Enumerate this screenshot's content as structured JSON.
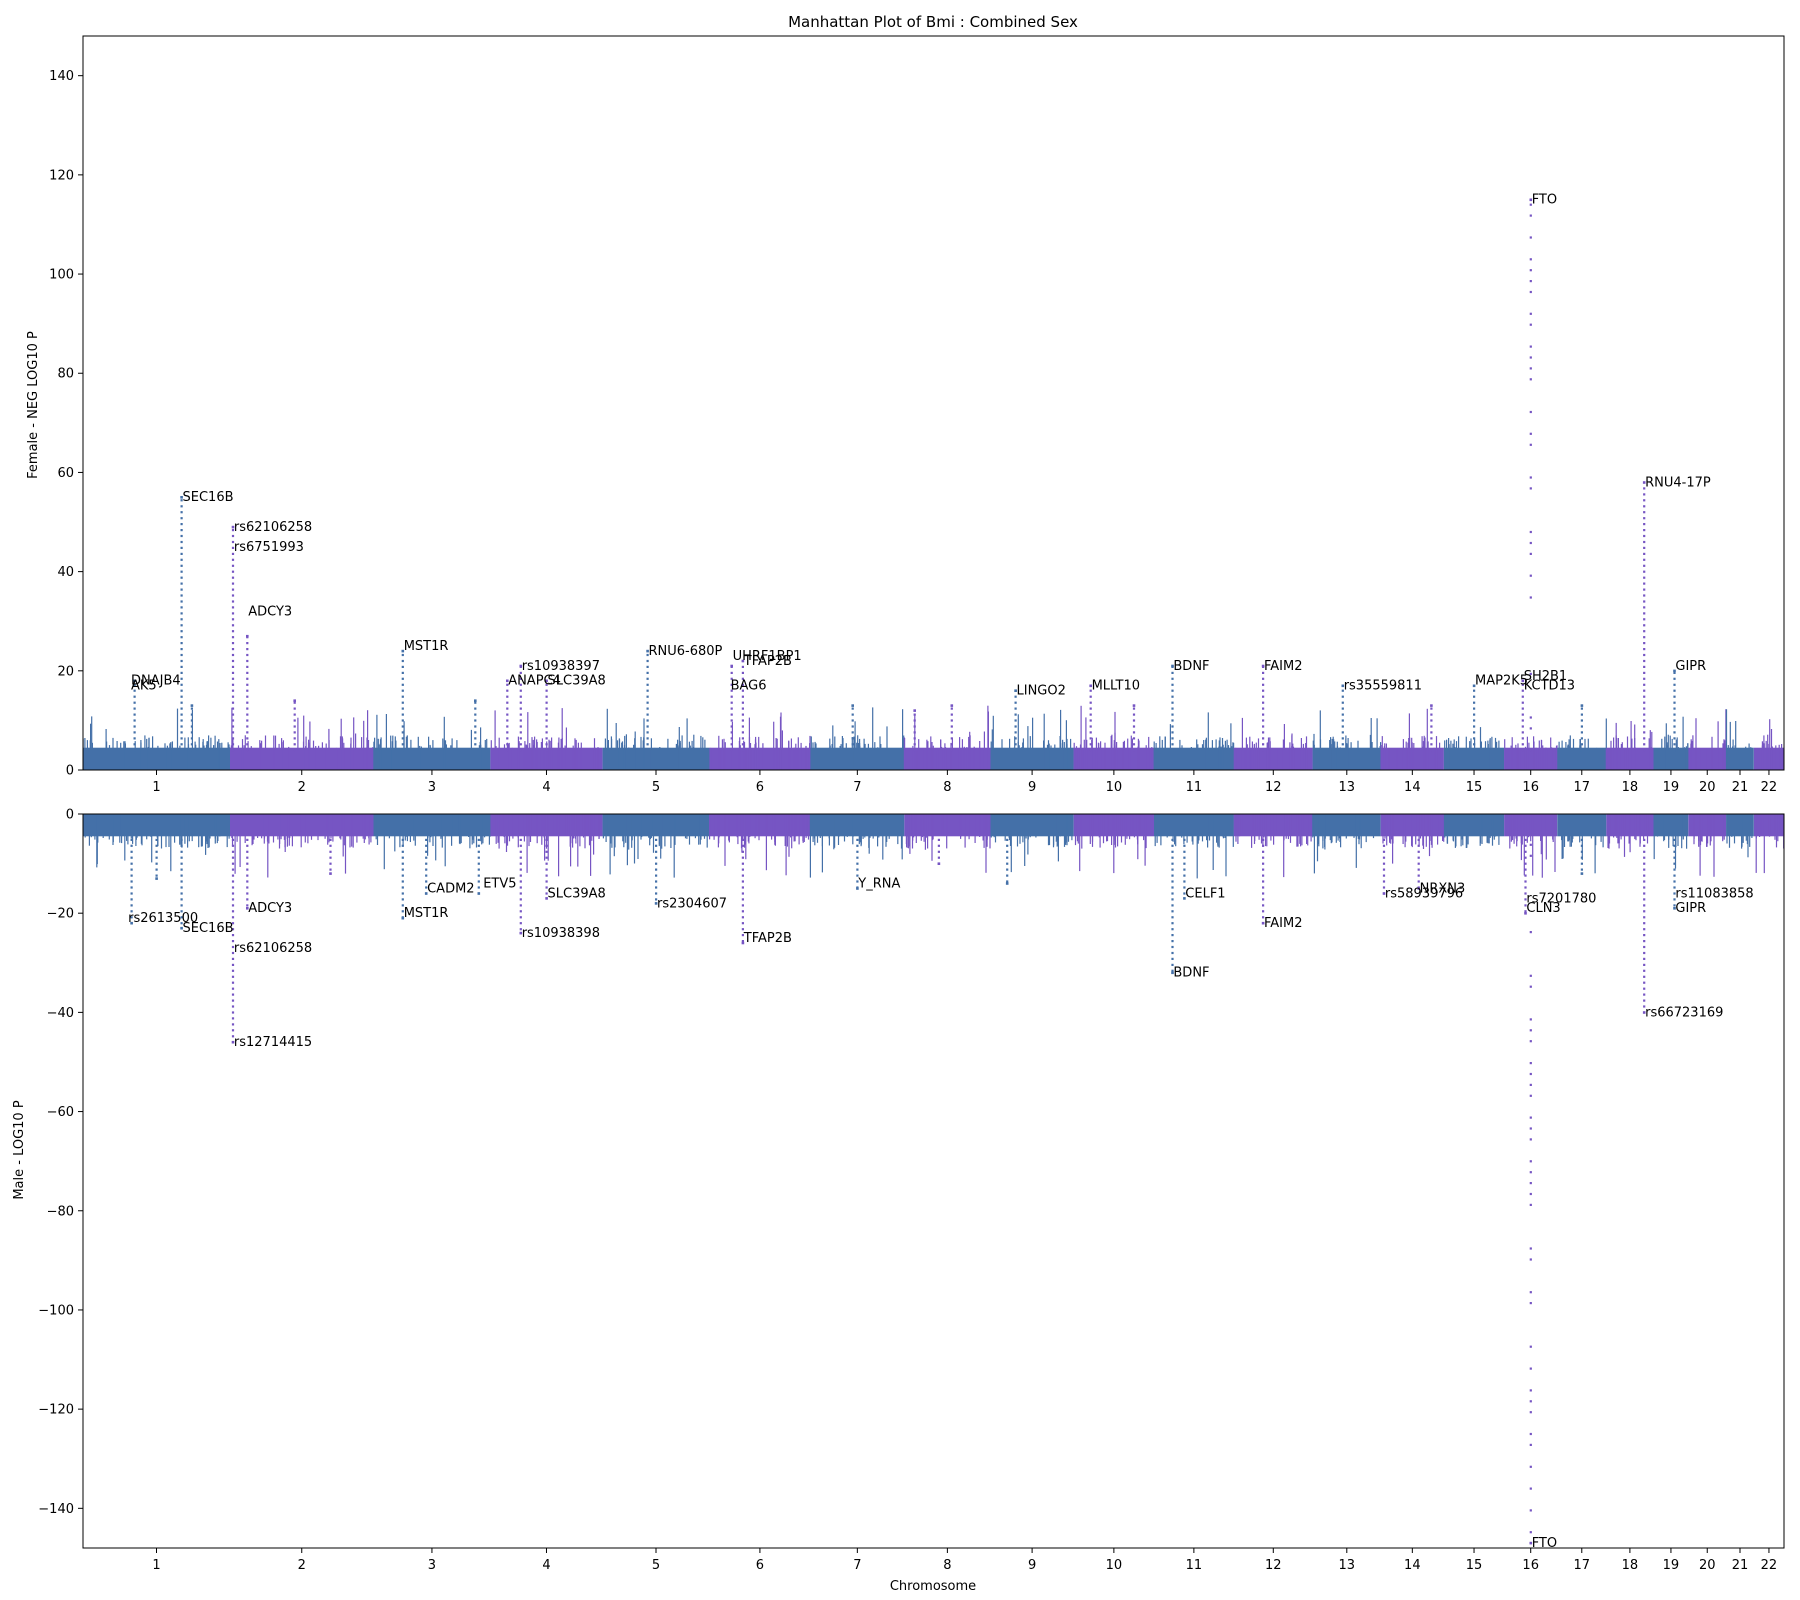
{
  "chart_data": {
    "type": "scatter",
    "title": "Manhattan Plot of Bmi : Combined Sex",
    "xlabel": "Chromosome",
    "chromosomes": [
      "1",
      "2",
      "3",
      "4",
      "5",
      "6",
      "7",
      "8",
      "9",
      "10",
      "11",
      "12",
      "13",
      "14",
      "15",
      "16",
      "17",
      "18",
      "19",
      "20",
      "21",
      "22"
    ],
    "chrom_lengths_mb": [
      249,
      243,
      198,
      190,
      181,
      171,
      159,
      146,
      141,
      136,
      135,
      134,
      115,
      107,
      102,
      90,
      83,
      80,
      59,
      64,
      47,
      51
    ],
    "colors": {
      "odd": "#4470a8",
      "even": "#7655c3"
    },
    "panels": [
      {
        "name": "female",
        "ylabel": "Female - NEG LOG10 P",
        "ylim": [
          0,
          148
        ],
        "yticks": [
          0,
          20,
          40,
          60,
          80,
          100,
          120,
          140
        ],
        "peaks": [
          {
            "chr": "1",
            "pos": 0.35,
            "y": 18
          },
          {
            "chr": "1",
            "pos": 0.67,
            "y": 55
          },
          {
            "chr": "1",
            "pos": 0.74,
            "y": 13
          },
          {
            "chr": "2",
            "pos": 0.02,
            "y": 49
          },
          {
            "chr": "2",
            "pos": 0.12,
            "y": 27
          },
          {
            "chr": "2",
            "pos": 0.45,
            "y": 14
          },
          {
            "chr": "3",
            "pos": 0.25,
            "y": 24
          },
          {
            "chr": "3",
            "pos": 0.87,
            "y": 14
          },
          {
            "chr": "4",
            "pos": 0.15,
            "y": 18
          },
          {
            "chr": "4",
            "pos": 0.27,
            "y": 21
          },
          {
            "chr": "4",
            "pos": 0.5,
            "y": 18
          },
          {
            "chr": "5",
            "pos": 0.42,
            "y": 24
          },
          {
            "chr": "6",
            "pos": 0.22,
            "y": 21
          },
          {
            "chr": "6",
            "pos": 0.33,
            "y": 22
          },
          {
            "chr": "7",
            "pos": 0.45,
            "y": 13
          },
          {
            "chr": "8",
            "pos": 0.12,
            "y": 12
          },
          {
            "chr": "8",
            "pos": 0.55,
            "y": 13
          },
          {
            "chr": "9",
            "pos": 0.3,
            "y": 16
          },
          {
            "chr": "10",
            "pos": 0.21,
            "y": 17
          },
          {
            "chr": "10",
            "pos": 0.75,
            "y": 13
          },
          {
            "chr": "11",
            "pos": 0.23,
            "y": 21
          },
          {
            "chr": "12",
            "pos": 0.37,
            "y": 21
          },
          {
            "chr": "13",
            "pos": 0.44,
            "y": 17
          },
          {
            "chr": "14",
            "pos": 0.8,
            "y": 13
          },
          {
            "chr": "15",
            "pos": 0.5,
            "y": 17
          },
          {
            "chr": "16",
            "pos": 0.5,
            "y": 115
          },
          {
            "chr": "16",
            "pos": 0.35,
            "y": 18
          },
          {
            "chr": "17",
            "pos": 0.5,
            "y": 13
          },
          {
            "chr": "18",
            "pos": 0.8,
            "y": 58
          },
          {
            "chr": "19",
            "pos": 0.6,
            "y": 20
          }
        ],
        "annotations": [
          {
            "text": "DNAJB4",
            "chr": "1",
            "pos": 0.32,
            "y": 18
          },
          {
            "text": "AK5",
            "chr": "1",
            "pos": 0.32,
            "y": 17
          },
          {
            "text": "SEC16B",
            "chr": "1",
            "pos": 0.67,
            "y": 55
          },
          {
            "text": "rs62106258",
            "chr": "2",
            "pos": 0.02,
            "y": 49
          },
          {
            "text": "rs6751993",
            "chr": "2",
            "pos": 0.02,
            "y": 45
          },
          {
            "text": "ADCY3",
            "chr": "2",
            "pos": 0.12,
            "y": 32
          },
          {
            "text": "MST1R",
            "chr": "3",
            "pos": 0.25,
            "y": 25
          },
          {
            "text": "rs10938397",
            "chr": "4",
            "pos": 0.27,
            "y": 21
          },
          {
            "text": "ANAPC4",
            "chr": "4",
            "pos": 0.15,
            "y": 18
          },
          {
            "text": "SLC39A8",
            "chr": "4",
            "pos": 0.5,
            "y": 18
          },
          {
            "text": "RNU6-680P",
            "chr": "5",
            "pos": 0.42,
            "y": 24
          },
          {
            "text": "UHRF1BP1",
            "chr": "6",
            "pos": 0.22,
            "y": 23
          },
          {
            "text": "TFAP2B",
            "chr": "6",
            "pos": 0.33,
            "y": 22
          },
          {
            "text": "BAG6",
            "chr": "6",
            "pos": 0.2,
            "y": 17
          },
          {
            "text": "LINGO2",
            "chr": "9",
            "pos": 0.3,
            "y": 16
          },
          {
            "text": "MLLT10",
            "chr": "10",
            "pos": 0.21,
            "y": 17
          },
          {
            "text": "BDNF",
            "chr": "11",
            "pos": 0.23,
            "y": 21
          },
          {
            "text": "FAIM2",
            "chr": "12",
            "pos": 0.37,
            "y": 21
          },
          {
            "text": "rs35559811",
            "chr": "13",
            "pos": 0.44,
            "y": 17
          },
          {
            "text": "MAP2K5",
            "chr": "15",
            "pos": 0.5,
            "y": 18
          },
          {
            "text": "SH2B1",
            "chr": "16",
            "pos": 0.35,
            "y": 19
          },
          {
            "text": "KCTD13",
            "chr": "16",
            "pos": 0.35,
            "y": 17
          },
          {
            "text": "FTO",
            "chr": "16",
            "pos": 0.5,
            "y": 115
          },
          {
            "text": "RNU4-17P",
            "chr": "18",
            "pos": 0.8,
            "y": 58
          },
          {
            "text": "GIPR",
            "chr": "19",
            "pos": 0.6,
            "y": 21
          }
        ]
      },
      {
        "name": "male",
        "ylabel": "Male - LOG10 P",
        "ylim": [
          -148,
          0
        ],
        "yticks": [
          0,
          -20,
          -40,
          -60,
          -80,
          -100,
          -120,
          -140
        ],
        "peaks": [
          {
            "chr": "1",
            "pos": 0.33,
            "y": -22
          },
          {
            "chr": "1",
            "pos": 0.5,
            "y": -13
          },
          {
            "chr": "1",
            "pos": 0.67,
            "y": -23
          },
          {
            "chr": "2",
            "pos": 0.02,
            "y": -46
          },
          {
            "chr": "2",
            "pos": 0.12,
            "y": -19
          },
          {
            "chr": "2",
            "pos": 0.7,
            "y": -12
          },
          {
            "chr": "3",
            "pos": 0.25,
            "y": -21
          },
          {
            "chr": "3",
            "pos": 0.45,
            "y": -16
          },
          {
            "chr": "3",
            "pos": 0.9,
            "y": -16
          },
          {
            "chr": "4",
            "pos": 0.27,
            "y": -24
          },
          {
            "chr": "4",
            "pos": 0.5,
            "y": -17
          },
          {
            "chr": "5",
            "pos": 0.5,
            "y": -18
          },
          {
            "chr": "6",
            "pos": 0.33,
            "y": -26
          },
          {
            "chr": "7",
            "pos": 0.5,
            "y": -15
          },
          {
            "chr": "8",
            "pos": 0.4,
            "y": -10
          },
          {
            "chr": "9",
            "pos": 0.2,
            "y": -14
          },
          {
            "chr": "11",
            "pos": 0.23,
            "y": -32
          },
          {
            "chr": "11",
            "pos": 0.38,
            "y": -17
          },
          {
            "chr": "12",
            "pos": 0.37,
            "y": -22
          },
          {
            "chr": "14",
            "pos": 0.05,
            "y": -16
          },
          {
            "chr": "14",
            "pos": 0.6,
            "y": -15
          },
          {
            "chr": "16",
            "pos": 0.5,
            "y": -147
          },
          {
            "chr": "16",
            "pos": 0.4,
            "y": -20
          },
          {
            "chr": "17",
            "pos": 0.5,
            "y": -12
          },
          {
            "chr": "18",
            "pos": 0.8,
            "y": -40
          },
          {
            "chr": "19",
            "pos": 0.6,
            "y": -19
          }
        ],
        "annotations": [
          {
            "text": "rs2613500",
            "chr": "1",
            "pos": 0.3,
            "y": -21
          },
          {
            "text": "SEC16B",
            "chr": "1",
            "pos": 0.67,
            "y": -23
          },
          {
            "text": "rs62106258",
            "chr": "2",
            "pos": 0.02,
            "y": -27
          },
          {
            "text": "rs12714415",
            "chr": "2",
            "pos": 0.02,
            "y": -46
          },
          {
            "text": "ADCY3",
            "chr": "2",
            "pos": 0.12,
            "y": -19
          },
          {
            "text": "CADM2",
            "chr": "3",
            "pos": 0.45,
            "y": -15
          },
          {
            "text": "MST1R",
            "chr": "3",
            "pos": 0.25,
            "y": -20
          },
          {
            "text": "ETV5",
            "chr": "3",
            "pos": 0.93,
            "y": -14
          },
          {
            "text": "SLC39A8",
            "chr": "4",
            "pos": 0.5,
            "y": -16
          },
          {
            "text": "rs10938398",
            "chr": "4",
            "pos": 0.27,
            "y": -24
          },
          {
            "text": "rs2304607",
            "chr": "5",
            "pos": 0.5,
            "y": -18
          },
          {
            "text": "TFAP2B",
            "chr": "6",
            "pos": 0.33,
            "y": -25
          },
          {
            "text": "Y_RNA",
            "chr": "7",
            "pos": 0.5,
            "y": -14
          },
          {
            "text": "CELF1",
            "chr": "11",
            "pos": 0.38,
            "y": -16
          },
          {
            "text": "BDNF",
            "chr": "11",
            "pos": 0.23,
            "y": -32
          },
          {
            "text": "FAIM2",
            "chr": "12",
            "pos": 0.37,
            "y": -22
          },
          {
            "text": "rs58939796",
            "chr": "14",
            "pos": 0.05,
            "y": -16
          },
          {
            "text": "NRXN3",
            "chr": "14",
            "pos": 0.6,
            "y": -15
          },
          {
            "text": "rs7201780",
            "chr": "16",
            "pos": 0.4,
            "y": -17
          },
          {
            "text": "CLN3",
            "chr": "16",
            "pos": 0.4,
            "y": -19
          },
          {
            "text": "FTO",
            "chr": "16",
            "pos": 0.5,
            "y": -147
          },
          {
            "text": "rs66723169",
            "chr": "18",
            "pos": 0.8,
            "y": -40
          },
          {
            "text": "rs11083858",
            "chr": "19",
            "pos": 0.6,
            "y": -16
          },
          {
            "text": "GIPR",
            "chr": "19",
            "pos": 0.6,
            "y": -19
          }
        ]
      }
    ]
  }
}
